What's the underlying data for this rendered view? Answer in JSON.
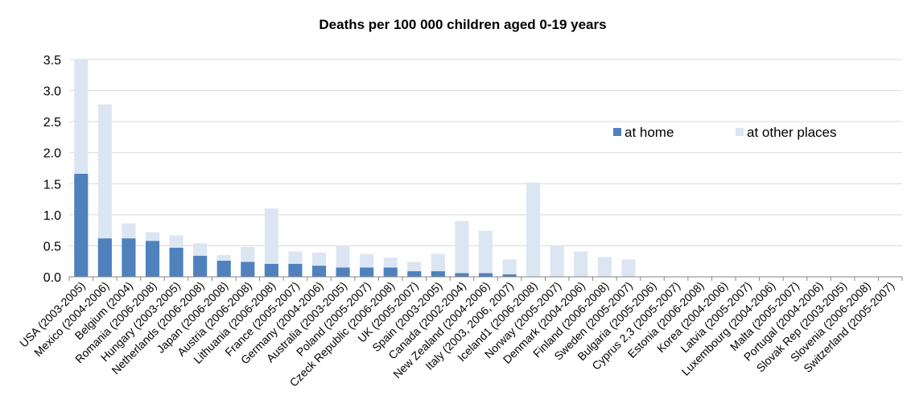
{
  "chart_data": {
    "type": "bar",
    "stacked": true,
    "title": "Deaths per 100 000 children aged 0-19 years",
    "xlabel": "",
    "ylabel": "",
    "ylim": [
      0,
      3.5
    ],
    "yticks": [
      "0.0",
      "0.5",
      "1.0",
      "1.5",
      "2.0",
      "2.5",
      "3.0",
      "3.5"
    ],
    "grid": "horizontal",
    "legend_position": "right",
    "categories": [
      "USA (2003-2005)",
      "Mexico (2004-2006)",
      "Belgium (2004)",
      "Romania (2006-2008)",
      "Hungary (2003-2005)",
      "Netherlands (2006-2008)",
      "Japan (2006-2008)",
      "Austria (2006-2008)",
      "Lithuania (2006-2008)",
      "France (2005-2007)",
      "Germany (2004-2006)",
      "Australia (2003-2005)",
      "Poland (2005-2007)",
      "Czeck Republic (2006-2008)",
      "UK (2005-2007)",
      "Spain (2003-2005)",
      "Canada (2002-2004)",
      "New Zealand (2004-2006)",
      "Italy (2003, 2006, 2007)",
      "Iceland1 (2006-2008)",
      "Norway (2005-2007)",
      "Denmark (2004-2006)",
      "Finland (2006-2008)",
      "Sweden (2005-2007)",
      "Bulgaria (2005-2006)",
      "Cyprus 2,3 (2005-2007)",
      "Estonia (2006-2008)",
      "Korea (2004-2006)",
      "Latvia (2005-2007)",
      "Luxembourg (2004-2006)",
      "Malta (2005-2007)",
      "Portugal (2004-2006)",
      "Slovak Rep (2003-2005)",
      "Slovenia (2006-2008)",
      "Switzerland (2005-2007)"
    ],
    "series": [
      {
        "name": "at home",
        "color": "#4f81bd",
        "values": [
          1.66,
          0.62,
          0.62,
          0.58,
          0.47,
          0.34,
          0.26,
          0.24,
          0.21,
          0.21,
          0.18,
          0.15,
          0.15,
          0.15,
          0.09,
          0.09,
          0.06,
          0.06,
          0.04,
          0,
          0,
          0,
          0,
          0,
          0,
          0,
          0,
          0,
          0,
          0,
          0,
          0,
          0,
          0,
          0
        ]
      },
      {
        "name": "at other places",
        "color": "#dce6f2",
        "values": [
          1.84,
          2.16,
          0.24,
          0.14,
          0.2,
          0.2,
          0.09,
          0.24,
          0.89,
          0.2,
          0.21,
          0.34,
          0.22,
          0.16,
          0.15,
          0.28,
          0.84,
          0.68,
          0.24,
          1.52,
          0.49,
          0.41,
          0.32,
          0.28,
          0,
          0,
          0,
          0,
          0,
          0,
          0,
          0,
          0,
          0,
          0
        ]
      }
    ]
  }
}
